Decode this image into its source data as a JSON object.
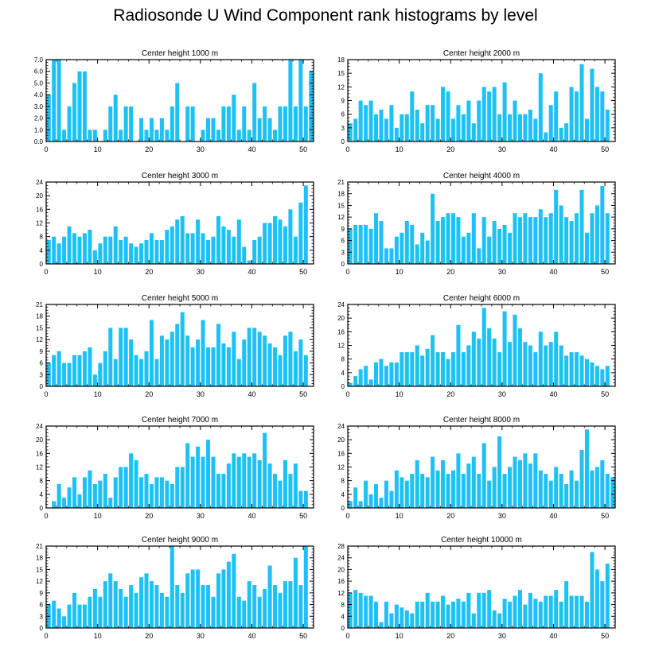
{
  "figure": {
    "title": "Radiosonde U Wind Component rank histograms by level",
    "bar_color": "#1ec1f4"
  },
  "chart_data": [
    {
      "type": "bar",
      "title": "Center height 1000 m",
      "xlabel": "",
      "ylabel": "",
      "xlim": [
        0,
        52
      ],
      "ylim": [
        0,
        7
      ],
      "yticks": [
        "0.0",
        "1.0",
        "2.0",
        "3.0",
        "4.0",
        "5.0",
        "6.0",
        "7.0"
      ],
      "xticks": [
        "0",
        "10",
        "20",
        "30",
        "40",
        "50"
      ],
      "x": [
        0,
        1,
        2,
        3,
        4,
        5,
        6,
        7,
        8,
        9,
        10,
        11,
        12,
        13,
        14,
        15,
        16,
        17,
        18,
        19,
        20,
        21,
        22,
        23,
        24,
        25,
        26,
        27,
        28,
        29,
        30,
        31,
        32,
        33,
        34,
        35,
        36,
        37,
        38,
        39,
        40,
        41,
        42,
        43,
        44,
        45,
        46,
        47,
        48,
        49,
        50,
        51
      ],
      "values": [
        4,
        7,
        7,
        1,
        3,
        5,
        6,
        6,
        1,
        1,
        0,
        1,
        3,
        4,
        1,
        3,
        3,
        0,
        2,
        1,
        2,
        1,
        2,
        1,
        3,
        5,
        0,
        3,
        3,
        0,
        1,
        2,
        2,
        1,
        3,
        3,
        4,
        1,
        3,
        1,
        5,
        2,
        3,
        2,
        1,
        3,
        3,
        7,
        3,
        7,
        3,
        6
      ]
    },
    {
      "type": "bar",
      "title": "Center height 2000 m",
      "xlabel": "",
      "ylabel": "",
      "xlim": [
        0,
        52
      ],
      "ylim": [
        0,
        18
      ],
      "yticks": [
        "0",
        "3",
        "6",
        "9",
        "12",
        "15",
        "18"
      ],
      "xticks": [
        "0",
        "10",
        "20",
        "30",
        "40",
        "50"
      ],
      "x": [
        0,
        1,
        2,
        3,
        4,
        5,
        6,
        7,
        8,
        9,
        10,
        11,
        12,
        13,
        14,
        15,
        16,
        17,
        18,
        19,
        20,
        21,
        22,
        23,
        24,
        25,
        26,
        27,
        28,
        29,
        30,
        31,
        32,
        33,
        34,
        35,
        36,
        37,
        38,
        39,
        40,
        41,
        42,
        43,
        44,
        45,
        46,
        47,
        48,
        49,
        50,
        51
      ],
      "values": [
        4,
        5,
        9,
        8,
        9,
        6,
        7,
        5,
        8,
        3,
        6,
        6,
        11,
        7,
        4,
        8,
        8,
        5,
        12,
        11,
        5,
        8,
        6,
        9,
        4,
        9,
        12,
        11,
        12,
        6,
        13,
        6,
        9,
        6,
        6,
        7,
        5,
        15,
        2,
        8,
        11,
        3,
        4,
        12,
        11,
        17,
        5,
        16,
        12,
        11,
        7,
        0
      ]
    },
    {
      "type": "bar",
      "title": "Center height 3000 m",
      "xlabel": "",
      "ylabel": "",
      "xlim": [
        0,
        52
      ],
      "ylim": [
        0,
        24
      ],
      "yticks": [
        "0",
        "4",
        "8",
        "12",
        "16",
        "20",
        "24"
      ],
      "xticks": [
        "0",
        "10",
        "20",
        "30",
        "40",
        "50"
      ],
      "x": [
        0,
        1,
        2,
        3,
        4,
        5,
        6,
        7,
        8,
        9,
        10,
        11,
        12,
        13,
        14,
        15,
        16,
        17,
        18,
        19,
        20,
        21,
        22,
        23,
        24,
        25,
        26,
        27,
        28,
        29,
        30,
        31,
        32,
        33,
        34,
        35,
        36,
        37,
        38,
        39,
        40,
        41,
        42,
        43,
        44,
        45,
        46,
        47,
        48,
        49,
        50,
        51
      ],
      "values": [
        7,
        8,
        6,
        8,
        11,
        9,
        8,
        9,
        10,
        4,
        6,
        8,
        8,
        11,
        7,
        8,
        6,
        5,
        6,
        7,
        9,
        7,
        7,
        10,
        11,
        13,
        14,
        9,
        9,
        13,
        9,
        7,
        8,
        14,
        11,
        10,
        8,
        13,
        5,
        1,
        7,
        8,
        12,
        12,
        14,
        13,
        11,
        16,
        8,
        18,
        23,
        0
      ]
    },
    {
      "type": "bar",
      "title": "Center height 4000 m",
      "xlabel": "",
      "ylabel": "",
      "xlim": [
        0,
        52
      ],
      "ylim": [
        0,
        21
      ],
      "yticks": [
        "0",
        "3",
        "6",
        "9",
        "12",
        "15",
        "18",
        "21"
      ],
      "xticks": [
        "0",
        "10",
        "20",
        "30",
        "40",
        "50"
      ],
      "x": [
        0,
        1,
        2,
        3,
        4,
        5,
        6,
        7,
        8,
        9,
        10,
        11,
        12,
        13,
        14,
        15,
        16,
        17,
        18,
        19,
        20,
        21,
        22,
        23,
        24,
        25,
        26,
        27,
        28,
        29,
        30,
        31,
        32,
        33,
        34,
        35,
        36,
        37,
        38,
        39,
        40,
        41,
        42,
        43,
        44,
        45,
        46,
        47,
        48,
        49,
        50,
        51
      ],
      "values": [
        9,
        10,
        10,
        10,
        9,
        13,
        11,
        4,
        4,
        7,
        8,
        11,
        10,
        5,
        8,
        6,
        18,
        11,
        12,
        13,
        13,
        12,
        7,
        8,
        13,
        4,
        12,
        7,
        11,
        9,
        10,
        8,
        13,
        12,
        13,
        12,
        12,
        14,
        12,
        13,
        19,
        15,
        12,
        11,
        13,
        19,
        8,
        13,
        15,
        20,
        13,
        0
      ]
    },
    {
      "type": "bar",
      "title": "Center height 5000 m",
      "xlabel": "",
      "ylabel": "",
      "xlim": [
        0,
        52
      ],
      "ylim": [
        0,
        21
      ],
      "yticks": [
        "0",
        "3",
        "6",
        "9",
        "12",
        "15",
        "18",
        "21"
      ],
      "xticks": [
        "0",
        "10",
        "20",
        "30",
        "40",
        "50"
      ],
      "x": [
        0,
        1,
        2,
        3,
        4,
        5,
        6,
        7,
        8,
        9,
        10,
        11,
        12,
        13,
        14,
        15,
        16,
        17,
        18,
        19,
        20,
        21,
        22,
        23,
        24,
        25,
        26,
        27,
        28,
        29,
        30,
        31,
        32,
        33,
        34,
        35,
        36,
        37,
        38,
        39,
        40,
        41,
        42,
        43,
        44,
        45,
        46,
        47,
        48,
        49,
        50,
        51
      ],
      "values": [
        6,
        8,
        9,
        6,
        6,
        8,
        8,
        9,
        10,
        3,
        6,
        9,
        15,
        7,
        15,
        15,
        12,
        8,
        7,
        9,
        17,
        7,
        13,
        12,
        14,
        16,
        19,
        13,
        10,
        12,
        17,
        10,
        10,
        16,
        11,
        10,
        14,
        7,
        12,
        15,
        15,
        14,
        13,
        11,
        10,
        8,
        13,
        14,
        9,
        12,
        8,
        0
      ]
    },
    {
      "type": "bar",
      "title": "Center height 6000 m",
      "xlabel": "",
      "ylabel": "",
      "xlim": [
        0,
        52
      ],
      "ylim": [
        0,
        24
      ],
      "yticks": [
        "0",
        "4",
        "8",
        "12",
        "16",
        "20",
        "24"
      ],
      "xticks": [
        "0",
        "10",
        "20",
        "30",
        "40",
        "50"
      ],
      "x": [
        0,
        1,
        2,
        3,
        4,
        5,
        6,
        7,
        8,
        9,
        10,
        11,
        12,
        13,
        14,
        15,
        16,
        17,
        18,
        19,
        20,
        21,
        22,
        23,
        24,
        25,
        26,
        27,
        28,
        29,
        30,
        31,
        32,
        33,
        34,
        35,
        36,
        37,
        38,
        39,
        40,
        41,
        42,
        43,
        44,
        45,
        46,
        47,
        48,
        49,
        50,
        51
      ],
      "values": [
        1,
        3,
        5,
        6,
        2,
        7,
        8,
        6,
        7,
        7,
        10,
        10,
        10,
        12,
        9,
        11,
        15,
        10,
        10,
        8,
        10,
        18,
        10,
        12,
        16,
        14,
        23,
        17,
        14,
        10,
        22,
        13,
        21,
        17,
        13,
        12,
        10,
        16,
        12,
        13,
        16,
        12,
        9,
        10,
        10,
        9,
        8,
        7,
        6,
        5,
        6,
        0
      ]
    },
    {
      "type": "bar",
      "title": "Center height 7000 m",
      "xlabel": "",
      "ylabel": "",
      "xlim": [
        0,
        52
      ],
      "ylim": [
        0,
        24
      ],
      "yticks": [
        "0",
        "4",
        "8",
        "12",
        "16",
        "20",
        "24"
      ],
      "xticks": [
        "0",
        "10",
        "20",
        "30",
        "40",
        "50"
      ],
      "x": [
        0,
        1,
        2,
        3,
        4,
        5,
        6,
        7,
        8,
        9,
        10,
        11,
        12,
        13,
        14,
        15,
        16,
        17,
        18,
        19,
        20,
        21,
        22,
        23,
        24,
        25,
        26,
        27,
        28,
        29,
        30,
        31,
        32,
        33,
        34,
        35,
        36,
        37,
        38,
        39,
        40,
        41,
        42,
        43,
        44,
        45,
        46,
        47,
        48,
        49,
        50,
        51
      ],
      "values": [
        0,
        2,
        7,
        3,
        6,
        9,
        4,
        9,
        11,
        7,
        8,
        10,
        3,
        9,
        12,
        12,
        16,
        14,
        9,
        10,
        7,
        9,
        9,
        8,
        7,
        12,
        12,
        19,
        15,
        18,
        15,
        20,
        15,
        10,
        10,
        13,
        16,
        15,
        16,
        15,
        16,
        14,
        22,
        13,
        10,
        8,
        14,
        10,
        13,
        5,
        5,
        0
      ]
    },
    {
      "type": "bar",
      "title": "Center height 8000 m",
      "xlabel": "",
      "ylabel": "",
      "xlim": [
        0,
        52
      ],
      "ylim": [
        0,
        24
      ],
      "yticks": [
        "0",
        "4",
        "8",
        "12",
        "16",
        "20",
        "24"
      ],
      "xticks": [
        "0",
        "10",
        "20",
        "30",
        "40",
        "50"
      ],
      "x": [
        0,
        1,
        2,
        3,
        4,
        5,
        6,
        7,
        8,
        9,
        10,
        11,
        12,
        13,
        14,
        15,
        16,
        17,
        18,
        19,
        20,
        21,
        22,
        23,
        24,
        25,
        26,
        27,
        28,
        29,
        30,
        31,
        32,
        33,
        34,
        35,
        36,
        37,
        38,
        39,
        40,
        41,
        42,
        43,
        44,
        45,
        46,
        47,
        48,
        49,
        50,
        51
      ],
      "values": [
        2,
        6,
        2,
        8,
        4,
        7,
        3,
        8,
        5,
        11,
        9,
        8,
        10,
        14,
        10,
        9,
        15,
        11,
        14,
        10,
        11,
        16,
        10,
        13,
        15,
        10,
        19,
        8,
        12,
        21,
        10,
        12,
        15,
        14,
        16,
        13,
        16,
        11,
        10,
        8,
        12,
        10,
        7,
        11,
        8,
        17,
        23,
        11,
        12,
        14,
        10,
        9
      ]
    },
    {
      "type": "bar",
      "title": "Center height 9000 m",
      "xlabel": "",
      "ylabel": "",
      "xlim": [
        0,
        52
      ],
      "ylim": [
        0,
        21
      ],
      "yticks": [
        "0",
        "3",
        "6",
        "9",
        "12",
        "15",
        "18",
        "21"
      ],
      "xticks": [
        "0",
        "10",
        "20",
        "30",
        "40",
        "50"
      ],
      "x": [
        0,
        1,
        2,
        3,
        4,
        5,
        6,
        7,
        8,
        9,
        10,
        11,
        12,
        13,
        14,
        15,
        16,
        17,
        18,
        19,
        20,
        21,
        22,
        23,
        24,
        25,
        26,
        27,
        28,
        29,
        30,
        31,
        32,
        33,
        34,
        35,
        36,
        37,
        38,
        39,
        40,
        41,
        42,
        43,
        44,
        45,
        46,
        47,
        48,
        49,
        50,
        51
      ],
      "values": [
        6,
        7,
        5,
        3,
        6,
        9,
        6,
        6,
        8,
        10,
        8,
        12,
        14,
        12,
        10,
        8,
        11,
        9,
        13,
        14,
        12,
        11,
        9,
        8,
        21,
        11,
        9,
        14,
        15,
        15,
        11,
        11,
        8,
        14,
        15,
        17,
        19,
        8,
        7,
        12,
        11,
        8,
        10,
        16,
        11,
        9,
        12,
        12,
        18,
        11,
        21,
        0
      ]
    },
    {
      "type": "bar",
      "title": "Center height 10000 m",
      "xlabel": "",
      "ylabel": "",
      "xlim": [
        0,
        52
      ],
      "ylim": [
        0,
        28
      ],
      "yticks": [
        "0",
        "4",
        "8",
        "12",
        "16",
        "20",
        "24",
        "28"
      ],
      "xticks": [
        "0",
        "10",
        "20",
        "30",
        "40",
        "50"
      ],
      "x": [
        0,
        1,
        2,
        3,
        4,
        5,
        6,
        7,
        8,
        9,
        10,
        11,
        12,
        13,
        14,
        15,
        16,
        17,
        18,
        19,
        20,
        21,
        22,
        23,
        24,
        25,
        26,
        27,
        28,
        29,
        30,
        31,
        32,
        33,
        34,
        35,
        36,
        37,
        38,
        39,
        40,
        41,
        42,
        43,
        44,
        45,
        46,
        47,
        48,
        49,
        50,
        51
      ],
      "values": [
        12,
        13,
        12,
        11,
        11,
        9,
        2,
        9,
        5,
        8,
        7,
        6,
        5,
        9,
        9,
        12,
        9,
        9,
        11,
        8,
        9,
        10,
        9,
        12,
        5,
        12,
        12,
        13,
        6,
        5,
        10,
        9,
        11,
        13,
        8,
        12,
        10,
        9,
        11,
        11,
        13,
        9,
        16,
        11,
        11,
        11,
        9,
        26,
        20,
        16,
        22,
        0
      ]
    }
  ]
}
